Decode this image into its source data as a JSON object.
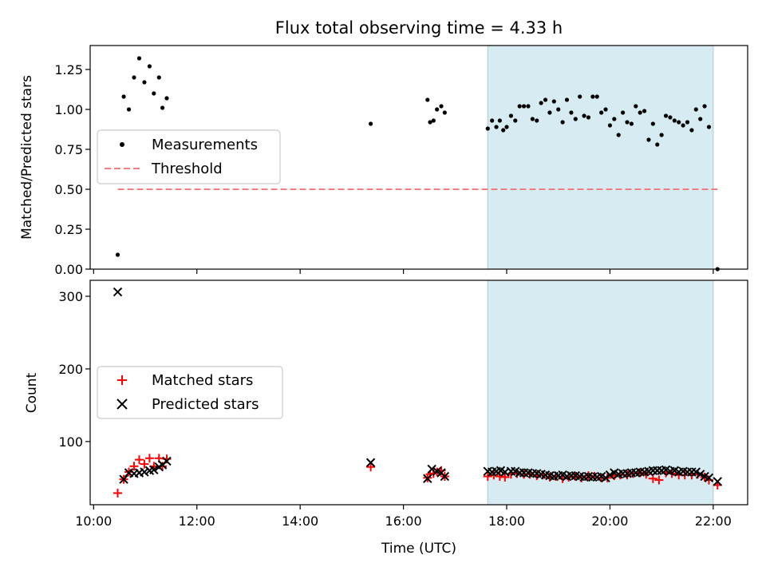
{
  "chart_data": [
    {
      "type": "scatter",
      "title": "Flux total observing time = 4.33 h",
      "ylabel": "Matched/Predicted stars",
      "xlabel": "",
      "xlim": [
        "09:56",
        "22:40"
      ],
      "ylim": [
        0,
        1.4
      ],
      "yticks": [
        0.0,
        0.25,
        0.5,
        0.75,
        1.0,
        1.25
      ],
      "ytick_labels": [
        "0.00",
        "0.25",
        "0.50",
        "0.75",
        "1.00",
        "1.25"
      ],
      "grid": false,
      "legend_position": "center-left",
      "shaded_interval": [
        "17:38",
        "22:00"
      ],
      "threshold": {
        "name": "Threshold",
        "value": 0.5,
        "x_range": [
          "10:28",
          "22:05"
        ],
        "color": "#f08080"
      },
      "series": [
        {
          "name": "Measurements",
          "color": "#000000",
          "marker": "dot",
          "points": [
            [
              "10:28",
              0.09
            ],
            [
              "10:35",
              1.08
            ],
            [
              "10:41",
              1.0
            ],
            [
              "10:47",
              1.2
            ],
            [
              "10:53",
              1.32
            ],
            [
              "10:59",
              1.17
            ],
            [
              "11:05",
              1.27
            ],
            [
              "11:10",
              1.1
            ],
            [
              "11:16",
              1.2
            ],
            [
              "11:20",
              1.01
            ],
            [
              "11:25",
              1.07
            ],
            [
              "15:22",
              0.91
            ],
            [
              "16:28",
              1.06
            ],
            [
              "16:31",
              0.92
            ],
            [
              "16:35",
              0.93
            ],
            [
              "16:39",
              1.0
            ],
            [
              "16:44",
              1.02
            ],
            [
              "16:48",
              0.98
            ],
            [
              "17:38",
              0.88
            ],
            [
              "17:43",
              0.93
            ],
            [
              "17:48",
              0.89
            ],
            [
              "17:52",
              0.93
            ],
            [
              "17:56",
              0.87
            ],
            [
              "18:00",
              0.89
            ],
            [
              "18:05",
              0.96
            ],
            [
              "18:10",
              0.93
            ],
            [
              "18:15",
              1.02
            ],
            [
              "18:20",
              1.02
            ],
            [
              "18:25",
              1.02
            ],
            [
              "18:30",
              0.94
            ],
            [
              "18:35",
              0.93
            ],
            [
              "18:40",
              1.04
            ],
            [
              "18:45",
              1.06
            ],
            [
              "18:50",
              0.98
            ],
            [
              "18:55",
              1.05
            ],
            [
              "19:00",
              1.0
            ],
            [
              "19:05",
              0.92
            ],
            [
              "19:10",
              1.06
            ],
            [
              "19:15",
              0.98
            ],
            [
              "19:20",
              0.94
            ],
            [
              "19:25",
              1.08
            ],
            [
              "19:30",
              0.96
            ],
            [
              "19:35",
              0.95
            ],
            [
              "19:40",
              1.08
            ],
            [
              "19:45",
              1.08
            ],
            [
              "19:50",
              0.98
            ],
            [
              "19:55",
              1.0
            ],
            [
              "20:00",
              0.9
            ],
            [
              "20:05",
              0.94
            ],
            [
              "20:10",
              0.84
            ],
            [
              "20:15",
              0.98
            ],
            [
              "20:20",
              0.92
            ],
            [
              "20:25",
              0.91
            ],
            [
              "20:30",
              1.02
            ],
            [
              "20:35",
              0.98
            ],
            [
              "20:40",
              0.99
            ],
            [
              "20:45",
              0.81
            ],
            [
              "20:50",
              0.91
            ],
            [
              "20:55",
              0.78
            ],
            [
              "21:00",
              0.84
            ],
            [
              "21:05",
              0.96
            ],
            [
              "21:10",
              0.95
            ],
            [
              "21:15",
              0.93
            ],
            [
              "21:20",
              0.92
            ],
            [
              "21:25",
              0.9
            ],
            [
              "21:30",
              0.92
            ],
            [
              "21:35",
              0.87
            ],
            [
              "21:40",
              1.0
            ],
            [
              "21:45",
              0.94
            ],
            [
              "21:50",
              1.02
            ],
            [
              "21:55",
              0.89
            ],
            [
              "22:05",
              0.0
            ]
          ]
        }
      ]
    },
    {
      "type": "scatter",
      "title": "",
      "ylabel": "Count",
      "xlabel": "Time (UTC)",
      "xlim": [
        "09:56",
        "22:40"
      ],
      "ylim": [
        13,
        322
      ],
      "yticks": [
        100,
        200,
        300
      ],
      "ytick_labels": [
        "100",
        "200",
        "300"
      ],
      "xticks": [
        "10:00",
        "12:00",
        "14:00",
        "16:00",
        "18:00",
        "20:00",
        "22:00"
      ],
      "xtick_labels": [
        "10:00",
        "12:00",
        "14:00",
        "16:00",
        "18:00",
        "20:00",
        "22:00"
      ],
      "grid": false,
      "legend_position": "center-left",
      "shaded_interval": [
        "17:38",
        "22:00"
      ],
      "series": [
        {
          "name": "Matched stars",
          "color": "#ff0000",
          "marker": "plus",
          "points": [
            [
              "10:28",
              29
            ],
            [
              "10:35",
              48
            ],
            [
              "10:41",
              58
            ],
            [
              "10:47",
              66
            ],
            [
              "10:53",
              75
            ],
            [
              "10:59",
              69
            ],
            [
              "11:05",
              77
            ],
            [
              "11:10",
              66
            ],
            [
              "11:16",
              77
            ],
            [
              "11:20",
              66
            ],
            [
              "11:25",
              76
            ],
            [
              "15:22",
              65
            ],
            [
              "16:28",
              50
            ],
            [
              "16:31",
              55
            ],
            [
              "16:35",
              56
            ],
            [
              "16:39",
              58
            ],
            [
              "16:44",
              60
            ],
            [
              "16:48",
              52
            ],
            [
              "17:38",
              52
            ],
            [
              "17:45",
              54
            ],
            [
              "17:52",
              52
            ],
            [
              "17:58",
              51
            ],
            [
              "18:05",
              55
            ],
            [
              "18:12",
              56
            ],
            [
              "18:20",
              55
            ],
            [
              "18:27",
              55
            ],
            [
              "18:35",
              53
            ],
            [
              "18:42",
              54
            ],
            [
              "18:50",
              51
            ],
            [
              "18:57",
              52
            ],
            [
              "19:05",
              49
            ],
            [
              "19:12",
              51
            ],
            [
              "19:20",
              52
            ],
            [
              "19:27",
              50
            ],
            [
              "19:35",
              53
            ],
            [
              "19:42",
              52
            ],
            [
              "19:50",
              50
            ],
            [
              "19:57",
              50
            ],
            [
              "20:05",
              53
            ],
            [
              "20:12",
              54
            ],
            [
              "20:20",
              54
            ],
            [
              "20:27",
              56
            ],
            [
              "20:35",
              57
            ],
            [
              "20:42",
              55
            ],
            [
              "20:50",
              49
            ],
            [
              "20:57",
              47
            ],
            [
              "21:05",
              57
            ],
            [
              "21:12",
              56
            ],
            [
              "21:20",
              54
            ],
            [
              "21:27",
              54
            ],
            [
              "21:35",
              54
            ],
            [
              "21:42",
              55
            ],
            [
              "21:50",
              51
            ],
            [
              "21:55",
              47
            ],
            [
              "22:05",
              40
            ]
          ]
        },
        {
          "name": "Predicted stars",
          "color": "#000000",
          "marker": "x",
          "points": [
            [
              "10:28",
              306
            ],
            [
              "10:35",
              48
            ],
            [
              "10:41",
              57
            ],
            [
              "10:47",
              56
            ],
            [
              "10:53",
              57
            ],
            [
              "10:59",
              58
            ],
            [
              "11:05",
              60
            ],
            [
              "11:10",
              61
            ],
            [
              "11:16",
              65
            ],
            [
              "11:20",
              68
            ],
            [
              "11:25",
              73
            ],
            [
              "15:22",
              71
            ],
            [
              "16:28",
              49
            ],
            [
              "16:33",
              62
            ],
            [
              "16:39",
              59
            ],
            [
              "16:44",
              57
            ],
            [
              "16:48",
              52
            ],
            [
              "17:38",
              59
            ],
            [
              "17:43",
              58
            ],
            [
              "17:48",
              59
            ],
            [
              "17:53",
              60
            ],
            [
              "17:58",
              58
            ],
            [
              "18:05",
              59
            ],
            [
              "18:10",
              59
            ],
            [
              "18:15",
              57
            ],
            [
              "18:20",
              57
            ],
            [
              "18:25",
              57
            ],
            [
              "18:30",
              56
            ],
            [
              "18:35",
              56
            ],
            [
              "18:40",
              55
            ],
            [
              "18:45",
              54
            ],
            [
              "18:50",
              53
            ],
            [
              "18:55",
              52
            ],
            [
              "19:00",
              53
            ],
            [
              "19:05",
              54
            ],
            [
              "19:10",
              52
            ],
            [
              "19:15",
              53
            ],
            [
              "19:20",
              53
            ],
            [
              "19:25",
              52
            ],
            [
              "19:30",
              51
            ],
            [
              "19:35",
              52
            ],
            [
              "19:40",
              51
            ],
            [
              "19:45",
              51
            ],
            [
              "19:50",
              52
            ],
            [
              "19:55",
              50
            ],
            [
              "20:00",
              54
            ],
            [
              "20:05",
              57
            ],
            [
              "20:10",
              55
            ],
            [
              "20:15",
              56
            ],
            [
              "20:20",
              56
            ],
            [
              "20:25",
              57
            ],
            [
              "20:30",
              57
            ],
            [
              "20:35",
              58
            ],
            [
              "20:40",
              58
            ],
            [
              "20:45",
              59
            ],
            [
              "20:50",
              60
            ],
            [
              "20:55",
              60
            ],
            [
              "21:00",
              60
            ],
            [
              "21:05",
              61
            ],
            [
              "21:10",
              59
            ],
            [
              "21:15",
              60
            ],
            [
              "21:20",
              58
            ],
            [
              "21:25",
              59
            ],
            [
              "21:30",
              58
            ],
            [
              "21:35",
              58
            ],
            [
              "21:40",
              58
            ],
            [
              "21:45",
              55
            ],
            [
              "21:50",
              52
            ],
            [
              "21:55",
              50
            ],
            [
              "22:05",
              45
            ]
          ]
        }
      ]
    }
  ]
}
